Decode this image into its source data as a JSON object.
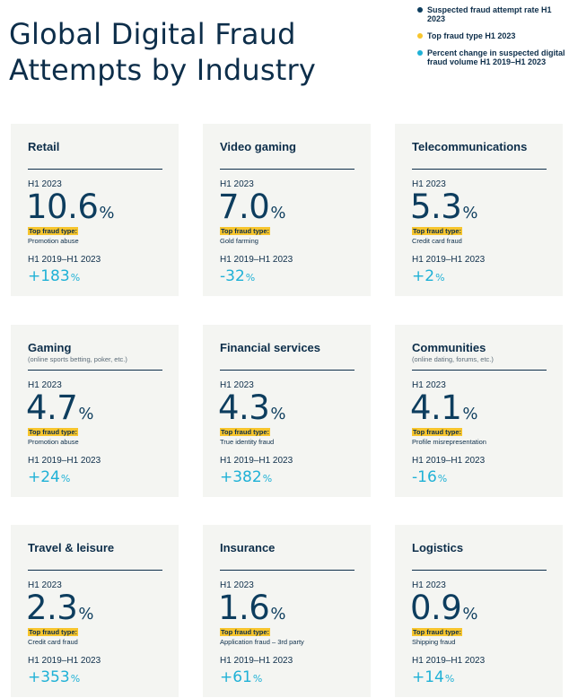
{
  "title": {
    "line1": "Global Digital Fraud",
    "line2": "Attempts by Industry"
  },
  "colors": {
    "dark": "#0d3d5e",
    "yellow": "#f7c52d",
    "cyan": "#1fb1d6"
  },
  "legend": [
    {
      "text": "Suspected fraud attempt rate H1 2023",
      "color": "#0d3d5e"
    },
    {
      "text": "Top fraud type H1 2023",
      "color": "#f7c52d"
    },
    {
      "text": "Percent change in suspected digital fraud volume H1 2019–H1 2023",
      "color": "#1fb1d6"
    }
  ],
  "labels": {
    "h1": "H1 2023",
    "top_fraud": "Top fraud type:",
    "period": "H1 2019–H1 2023",
    "pct": "%"
  },
  "chart_data": {
    "type": "table",
    "title": "Global Digital Fraud Attempts by Industry",
    "columns": [
      "Industry",
      "Suspected fraud attempt rate H1 2023 (%)",
      "Top fraud type H1 2023",
      "Percent change H1 2019–H1 2023 (%)"
    ],
    "industries": [
      {
        "name": "Retail",
        "sub": "",
        "rate": "10.6",
        "fraud": "Promotion abuse",
        "change": "+183"
      },
      {
        "name": "Video gaming",
        "sub": "",
        "rate": "7.0",
        "fraud": "Gold farming",
        "change": "-32"
      },
      {
        "name": "Telecommunications",
        "sub": "",
        "rate": "5.3",
        "fraud": "Credit card fraud",
        "change": "+2"
      },
      {
        "name": "Gaming",
        "sub": "(online sports betting, poker, etc.)",
        "rate": "4.7",
        "fraud": "Promotion abuse",
        "change": "+24"
      },
      {
        "name": "Financial services",
        "sub": "",
        "rate": "4.3",
        "fraud": "True identity fraud",
        "change": "+382"
      },
      {
        "name": "Communities",
        "sub": "(online dating, forums, etc.)",
        "rate": "4.1",
        "fraud": "Profile misrepresentation",
        "change": "-16"
      },
      {
        "name": "Travel & leisure",
        "sub": "",
        "rate": "2.3",
        "fraud": "Credit card fraud",
        "change": "+353"
      },
      {
        "name": "Insurance",
        "sub": "",
        "rate": "1.6",
        "fraud": "Application fraud – 3rd party",
        "change": "+61"
      },
      {
        "name": "Logistics",
        "sub": "",
        "rate": "0.9",
        "fraud": "Shipping fraud",
        "change": "+14"
      }
    ]
  }
}
